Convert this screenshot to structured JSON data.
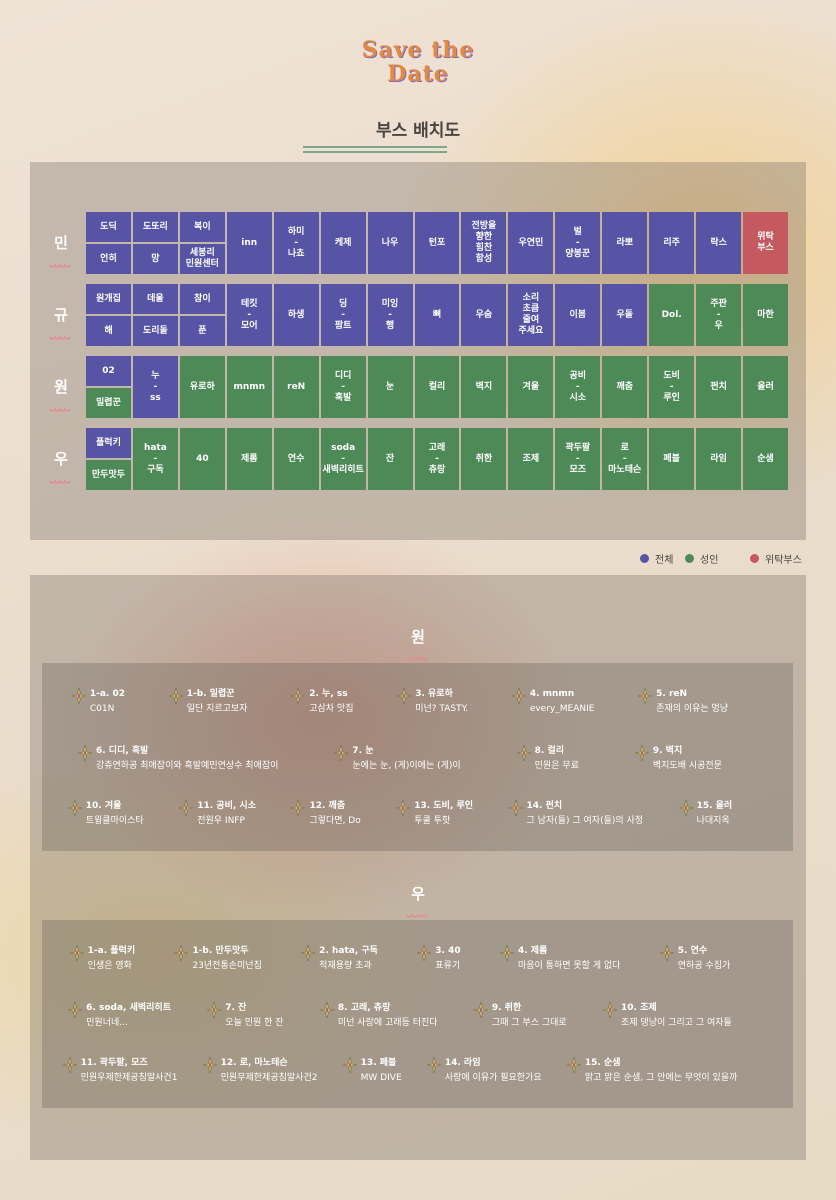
{
  "header": {
    "logo": "Save the Date",
    "title": "부스 배치도"
  },
  "booth_map": {
    "rows": [
      {
        "label": "민",
        "cells": [
          {
            "top": {
              "text": "도딕",
              "color": "#5753a5"
            },
            "bottom": {
              "text": "언히",
              "color": "#5753a5"
            }
          },
          {
            "top": {
              "text": "도또리",
              "color": "#5753a5"
            },
            "bottom": {
              "text": "망",
              "color": "#5753a5"
            }
          },
          {
            "top": {
              "text": "복이",
              "color": "#5753a5"
            },
            "bottom": {
              "text": "세봉리\n민원센터",
              "color": "#5753a5"
            }
          },
          {
            "text": "inn",
            "color": "#5753a5"
          },
          {
            "text": "하미\n-\n나쵸",
            "color": "#5753a5"
          },
          {
            "text": "케제",
            "color": "#5753a5"
          },
          {
            "text": "나우",
            "color": "#5753a5"
          },
          {
            "text": "턴포",
            "color": "#5753a5"
          },
          {
            "text": "전방을\n향한\n힘찬\n함성",
            "color": "#5753a5"
          },
          {
            "text": "우연민",
            "color": "#5753a5"
          },
          {
            "text": "벌\n-\n양봉꾼",
            "color": "#5753a5"
          },
          {
            "text": "라뽀",
            "color": "#5753a5"
          },
          {
            "text": "리주",
            "color": "#5753a5"
          },
          {
            "text": "락스",
            "color": "#5753a5"
          },
          {
            "text": "위탁\n부스",
            "color": "#c45a60"
          }
        ]
      },
      {
        "label": "규",
        "cells": [
          {
            "top": {
              "text": "원개집",
              "color": "#5753a5"
            },
            "bottom": {
              "text": "해",
              "color": "#5753a5"
            }
          },
          {
            "top": {
              "text": "데울",
              "color": "#5753a5"
            },
            "bottom": {
              "text": "도리돌",
              "color": "#5753a5"
            }
          },
          {
            "top": {
              "text": "참이",
              "color": "#5753a5"
            },
            "bottom": {
              "text": "푼",
              "color": "#5753a5"
            }
          },
          {
            "text": "테킷\n-\n모어",
            "color": "#5753a5"
          },
          {
            "text": "하생",
            "color": "#5753a5"
          },
          {
            "text": "딩\n-\n팜트",
            "color": "#5753a5"
          },
          {
            "text": "미잉\n-\n행",
            "color": "#5753a5"
          },
          {
            "text": "뼈",
            "color": "#5753a5"
          },
          {
            "text": "우숨",
            "color": "#5753a5"
          },
          {
            "text": "소리\n초큼\n줄여\n주세요",
            "color": "#5753a5"
          },
          {
            "text": "이봄",
            "color": "#5753a5"
          },
          {
            "text": "우돌",
            "color": "#5753a5"
          },
          {
            "text": "Dol.",
            "color": "#4d8a58"
          },
          {
            "text": "주판\n-\n우",
            "color": "#4d8a58"
          },
          {
            "text": "마한",
            "color": "#4d8a58"
          }
        ]
      },
      {
        "label": "원",
        "cells": [
          {
            "top": {
              "text": "02",
              "color": "#5753a5"
            },
            "bottom": {
              "text": "밀렵꾼",
              "color": "#4d8a58"
            }
          },
          {
            "text": "누\n-\nss",
            "color": "#5753a5"
          },
          {
            "text": "유로하",
            "color": "#4d8a58"
          },
          {
            "text": "mnmn",
            "color": "#4d8a58"
          },
          {
            "text": "reN",
            "color": "#4d8a58"
          },
          {
            "text": "디디\n-\n흑발",
            "color": "#4d8a58"
          },
          {
            "text": "눈",
            "color": "#4d8a58"
          },
          {
            "text": "컬리",
            "color": "#4d8a58"
          },
          {
            "text": "벽지",
            "color": "#4d8a58"
          },
          {
            "text": "겨울",
            "color": "#4d8a58"
          },
          {
            "text": "공비\n-\n시소",
            "color": "#4d8a58"
          },
          {
            "text": "깨춤",
            "color": "#4d8a58"
          },
          {
            "text": "도비\n-\n루인",
            "color": "#4d8a58"
          },
          {
            "text": "펀치",
            "color": "#4d8a58"
          },
          {
            "text": "올러",
            "color": "#4d8a58"
          }
        ]
      },
      {
        "label": "우",
        "cells": [
          {
            "top": {
              "text": "플럭키",
              "color": "#5753a5"
            },
            "bottom": {
              "text": "만두맛두",
              "color": "#4d8a58"
            }
          },
          {
            "text": "hata\n-\n구독",
            "color": "#4d8a58"
          },
          {
            "text": "40",
            "color": "#4d8a58"
          },
          {
            "text": "제롬",
            "color": "#4d8a58"
          },
          {
            "text": "연수",
            "color": "#4d8a58"
          },
          {
            "text": "soda\n-\n새벽리히트",
            "color": "#4d8a58"
          },
          {
            "text": "잔",
            "color": "#4d8a58"
          },
          {
            "text": "고래\n-\n츄랑",
            "color": "#4d8a58"
          },
          {
            "text": "취한",
            "color": "#4d8a58"
          },
          {
            "text": "조제",
            "color": "#4d8a58"
          },
          {
            "text": "곽두팔\n-\n모즈",
            "color": "#4d8a58"
          },
          {
            "text": "로\n-\n마노테슨",
            "color": "#4d8a58"
          },
          {
            "text": "페블",
            "color": "#4d8a58"
          },
          {
            "text": "라임",
            "color": "#4d8a58"
          },
          {
            "text": "순샘",
            "color": "#4d8a58"
          }
        ]
      }
    ]
  },
  "legend": [
    {
      "label": "전체",
      "color": "#5753a5"
    },
    {
      "label": "성인",
      "color": "#4d8a58"
    },
    {
      "label": "위탁부스",
      "color": "#c45a60"
    }
  ],
  "sections": [
    {
      "title": "원",
      "rows": [
        [
          {
            "title": "1-a. 02",
            "text": "C01N"
          },
          {
            "title": "1-b. 밀렵꾼",
            "text": "일단 지르고보자"
          },
          {
            "title": "2. 누, ss",
            "text": "고삼차 맛집"
          },
          {
            "title": "3. 유로하",
            "text": "미넌? TASTY."
          },
          {
            "title": "4. mnmn",
            "text": "every_MEANIE"
          },
          {
            "title": "5. reN",
            "text": "존재의 이유는 멍냥"
          }
        ],
        [
          {
            "title": "6. 디디, 흑발",
            "text": "강쥬연하공 최애잡이와 흑발예민연상수 최애잡이"
          },
          {
            "title": "7. 눈",
            "text": "눈에는 눈, (게)이에는 (게)이"
          },
          {
            "title": "8. 컬리",
            "text": "민원은 무료"
          },
          {
            "title": "9. 벽지",
            "text": "벽지도배 시공전문"
          }
        ],
        [
          {
            "title": "10. 겨울",
            "text": "트윙클마이스타"
          },
          {
            "title": "11. 공비, 시소",
            "text": "전원우 INFP"
          },
          {
            "title": "12. 깨춤",
            "text": "그렇다면, Do"
          },
          {
            "title": "13. 도비, 루인",
            "text": "투쿨 투핫"
          },
          {
            "title": "14. 펀치",
            "text": "그 남자(들) 그 여자(들)의 사정"
          },
          {
            "title": "15. 올러",
            "text": "나대지옥"
          }
        ]
      ]
    },
    {
      "title": "우",
      "rows": [
        [
          {
            "title": "1-a. 플럭키",
            "text": "인생은 영화"
          },
          {
            "title": "1-b. 만두맛두",
            "text": "23년전통손미넌집"
          },
          {
            "title": "2. hata, 구독",
            "text": "적재용량 초과"
          },
          {
            "title": "3. 40",
            "text": "표류기"
          },
          {
            "title": "4. 제롬",
            "text": "마음이 통하면 못할 게 없다"
          },
          {
            "title": "5. 연수",
            "text": "연하공 수집가"
          }
        ],
        [
          {
            "title": "6. soda, 새벽리히트",
            "text": "민원너네..."
          },
          {
            "title": "7. 잔",
            "text": "오늘 민원 한 잔"
          },
          {
            "title": "8. 고래, 츄랑",
            "text": "미넌 사랑에 고래등 터진다"
          },
          {
            "title": "9. 취한",
            "text": "그때 그 부스 그대로"
          },
          {
            "title": "10. 조제",
            "text": "조제 댕냥이 그리고 그 여자들"
          }
        ],
        [
          {
            "title": "11. 곽두팔, 모즈",
            "text": "민원우제한제공침말사건1"
          },
          {
            "title": "12. 로, 마노테슨",
            "text": "민원무제한제공침말사건2"
          },
          {
            "title": "13. 페블",
            "text": "MW DIVE"
          },
          {
            "title": "14. 라임",
            "text": "사랑에 이유가 필요한가요"
          },
          {
            "title": "15. 순샘",
            "text": "맑고 맑은 순샘, 그 안에는 무엇이 있을까"
          }
        ]
      ]
    }
  ]
}
